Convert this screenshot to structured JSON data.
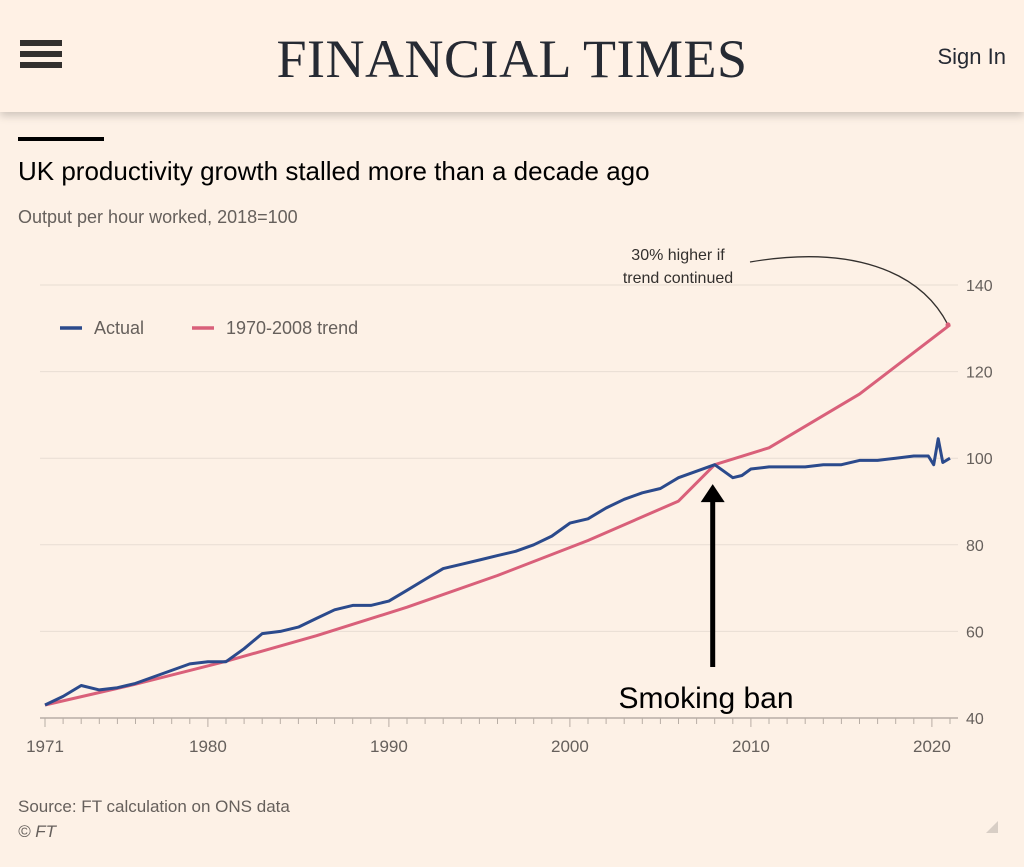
{
  "header": {
    "brand": "FINANCIAL TIMES",
    "sign_in": "Sign In"
  },
  "title": "UK productivity growth stalled more than a decade ago",
  "subtitle": "Output per hour worked, 2018=100",
  "source": "Source: FT calculation on ONS data",
  "copyright": "© FT",
  "colors": {
    "actual": "#2b4a8c",
    "trend": "#d9607a",
    "background": "#fdf1e6",
    "grid": "#e8ddd3"
  },
  "chart_data": {
    "type": "line",
    "title": "UK productivity growth stalled more than a decade ago",
    "ylabel": "Output per hour worked, 2018=100",
    "xlim": [
      1971,
      2021
    ],
    "ylim": [
      40,
      140
    ],
    "x_ticks": [
      1971,
      1980,
      1990,
      2000,
      2010,
      2020
    ],
    "x_tick_labels": [
      "1971",
      "1980",
      "1990",
      "2000",
      "2010",
      "2020"
    ],
    "y_ticks": [
      40,
      60,
      80,
      100,
      120,
      140
    ],
    "y_tick_labels": [
      "40",
      "60",
      "80",
      "100",
      "120",
      "140"
    ],
    "legend": [
      "Actual",
      "1970-2008 trend"
    ],
    "legend_position": "top-left",
    "series": [
      {
        "name": "Actual",
        "x": [
          1971,
          1972,
          1973,
          1974,
          1975,
          1976,
          1977,
          1978,
          1979,
          1980,
          1981,
          1982,
          1983,
          1984,
          1985,
          1986,
          1987,
          1988,
          1989,
          1990,
          1991,
          1992,
          1993,
          1994,
          1995,
          1996,
          1997,
          1998,
          1999,
          2000,
          2001,
          2002,
          2003,
          2004,
          2005,
          2006,
          2007,
          2008,
          2008.5,
          2009,
          2009.5,
          2010,
          2011,
          2012,
          2013,
          2014,
          2015,
          2016,
          2017,
          2018,
          2019,
          2019.8,
          2020.1,
          2020.35,
          2020.6,
          2021
        ],
        "values": [
          43,
          45,
          47.5,
          46.5,
          47,
          48,
          49.5,
          51,
          52.5,
          53,
          53,
          56,
          59.5,
          60,
          61,
          63,
          65,
          66,
          66,
          67,
          69.5,
          72,
          74.5,
          75.5,
          76.5,
          77.5,
          78.5,
          80,
          82,
          85,
          86,
          88.5,
          90.5,
          92,
          93,
          95.5,
          97,
          98.5,
          97,
          95.5,
          96,
          97.5,
          98,
          98,
          98,
          98.5,
          98.5,
          99.5,
          99.5,
          100,
          100.5,
          100.5,
          98.5,
          104.5,
          99,
          100
        ]
      },
      {
        "name": "1970-2008 trend",
        "x": [
          1971,
          1976,
          1981,
          1986,
          1991,
          1996,
          2001,
          2006,
          2008,
          2011,
          2016,
          2021
        ],
        "values": [
          43,
          47.8,
          53.1,
          59.0,
          65.6,
          72.9,
          81.0,
          90.1,
          98.5,
          102.4,
          114.8,
          130.8
        ]
      }
    ],
    "annotations": [
      {
        "text_lines": [
          "30% higher if",
          "trend continued"
        ],
        "target_x": 2021,
        "target_y": 130.8
      },
      {
        "text": "Smoking ban",
        "target_x": 2008,
        "target_y": 94
      }
    ]
  }
}
